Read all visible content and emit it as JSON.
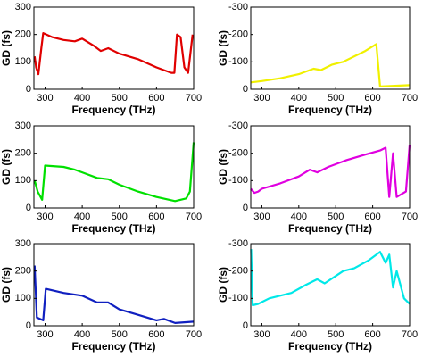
{
  "chart_data": [
    {
      "type": "line",
      "x_label": "Frequency (THz)",
      "y_label": "GD (fs)",
      "color": "#e00000",
      "x": [
        272,
        276,
        282,
        290,
        295,
        320,
        350,
        380,
        400,
        430,
        450,
        470,
        500,
        550,
        600,
        640,
        648,
        655,
        665,
        675,
        685,
        697
      ],
      "values": [
        120,
        80,
        55,
        150,
        205,
        190,
        180,
        175,
        185,
        160,
        140,
        150,
        130,
        110,
        80,
        60,
        60,
        200,
        190,
        80,
        60,
        200
      ],
      "xlim": [
        270,
        700
      ],
      "ylim": [
        0,
        300
      ],
      "xticks": [
        300,
        400,
        500,
        600,
        700
      ],
      "yticks": [
        0,
        100,
        200,
        300
      ]
    },
    {
      "type": "line",
      "x_label": "Frequency (THz)",
      "y_label": "GD (fs)",
      "color": "#f0f000",
      "x": [
        270,
        300,
        350,
        400,
        440,
        460,
        490,
        520,
        580,
        610,
        620,
        700
      ],
      "values": [
        -25,
        -30,
        -40,
        -55,
        -75,
        -70,
        -90,
        -100,
        -140,
        -165,
        -10,
        -15
      ],
      "xlim": [
        270,
        700
      ],
      "ylim": [
        0,
        -300
      ],
      "xticks": [
        300,
        400,
        500,
        600,
        700
      ],
      "yticks": [
        0,
        -100,
        -200,
        -300
      ]
    },
    {
      "type": "line",
      "x_label": "Frequency (THz)",
      "y_label": "GD (fs)",
      "color": "#00e000",
      "x": [
        272,
        280,
        292,
        300,
        350,
        380,
        400,
        440,
        470,
        500,
        550,
        600,
        650,
        680,
        690,
        700
      ],
      "values": [
        100,
        60,
        30,
        155,
        150,
        140,
        130,
        110,
        105,
        85,
        60,
        40,
        25,
        35,
        60,
        240
      ],
      "xlim": [
        270,
        700
      ],
      "ylim": [
        0,
        300
      ],
      "xticks": [
        300,
        400,
        500,
        600,
        700
      ],
      "yticks": [
        0,
        100,
        200,
        300
      ]
    },
    {
      "type": "line",
      "x_label": "Frequency (THz)",
      "y_label": "GD (fs)",
      "color": "#e000e0",
      "x": [
        270,
        280,
        290,
        300,
        350,
        400,
        430,
        450,
        480,
        530,
        580,
        620,
        635,
        645,
        655,
        665,
        690,
        700
      ],
      "values": [
        -70,
        -55,
        -60,
        -70,
        -90,
        -115,
        -140,
        -130,
        -150,
        -175,
        -195,
        -210,
        -220,
        -40,
        -200,
        -40,
        -60,
        -230
      ],
      "xlim": [
        270,
        700
      ],
      "ylim": [
        0,
        -300
      ],
      "xticks": [
        300,
        400,
        500,
        600,
        700
      ],
      "yticks": [
        0,
        -100,
        -200,
        -300
      ]
    },
    {
      "type": "line",
      "x_label": "Frequency (THz)",
      "y_label": "GD (fs)",
      "color": "#1020c0",
      "x": [
        272,
        278,
        295,
        302,
        350,
        400,
        440,
        470,
        500,
        550,
        600,
        620,
        650,
        700
      ],
      "values": [
        220,
        30,
        20,
        135,
        120,
        110,
        85,
        85,
        60,
        40,
        20,
        25,
        10,
        15
      ],
      "xlim": [
        270,
        700
      ],
      "ylim": [
        0,
        300
      ],
      "xticks": [
        300,
        400,
        500,
        600,
        700
      ],
      "yticks": [
        0,
        100,
        200,
        300
      ]
    },
    {
      "type": "line",
      "x_label": "Frequency (THz)",
      "y_label": "GD (fs)",
      "color": "#00e8e8",
      "x": [
        271,
        275,
        290,
        320,
        380,
        420,
        450,
        470,
        520,
        550,
        590,
        620,
        635,
        645,
        655,
        665,
        685,
        700
      ],
      "values": [
        -280,
        -75,
        -80,
        -100,
        -120,
        -150,
        -170,
        -155,
        -200,
        -210,
        -240,
        -270,
        -230,
        -260,
        -140,
        -200,
        -100,
        -80
      ],
      "xlim": [
        270,
        700
      ],
      "ylim": [
        0,
        -300
      ],
      "xticks": [
        300,
        400,
        500,
        600,
        700
      ],
      "yticks": [
        0,
        -100,
        -200,
        -300
      ]
    }
  ]
}
